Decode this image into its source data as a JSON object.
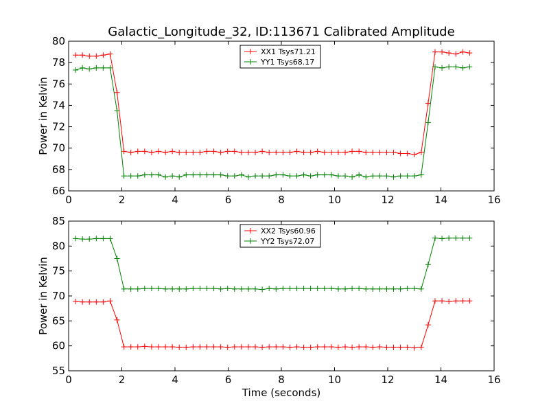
{
  "chart_data": [
    {
      "type": "line",
      "title": "Galactic_Longitude_32, ID:113671 Calibrated Amplitude",
      "xlabel": "",
      "ylabel": "Power in Kelvin",
      "xlim": [
        0,
        16
      ],
      "ylim": [
        66,
        80
      ],
      "xticks": [
        0,
        2,
        4,
        6,
        8,
        10,
        12,
        14,
        16
      ],
      "yticks": [
        66,
        68,
        70,
        72,
        74,
        76,
        78,
        80
      ],
      "legend_position": "upper center",
      "series": [
        {
          "name": "XX1 Tsys71.21",
          "color": "#ff0000",
          "x": [
            0.26,
            0.52,
            0.78,
            1.04,
            1.3,
            1.56,
            1.82,
            2.08,
            2.34,
            2.6,
            2.86,
            3.12,
            3.38,
            3.64,
            3.9,
            4.16,
            4.42,
            4.68,
            4.94,
            5.2,
            5.46,
            5.72,
            5.98,
            6.24,
            6.5,
            6.76,
            7.02,
            7.28,
            7.54,
            7.8,
            8.06,
            8.32,
            8.58,
            8.84,
            9.1,
            9.36,
            9.62,
            9.88,
            10.14,
            10.4,
            10.66,
            10.92,
            11.18,
            11.44,
            11.7,
            11.96,
            12.22,
            12.48,
            12.74,
            13.0,
            13.26,
            13.52,
            13.78,
            14.04,
            14.3,
            14.56,
            14.82,
            15.08
          ],
          "y": [
            78.7,
            78.7,
            78.6,
            78.6,
            78.7,
            78.8,
            75.2,
            69.7,
            69.6,
            69.7,
            69.7,
            69.6,
            69.7,
            69.6,
            69.7,
            69.6,
            69.6,
            69.6,
            69.6,
            69.7,
            69.7,
            69.6,
            69.7,
            69.7,
            69.6,
            69.6,
            69.6,
            69.7,
            69.6,
            69.6,
            69.6,
            69.6,
            69.7,
            69.6,
            69.6,
            69.7,
            69.6,
            69.6,
            69.6,
            69.6,
            69.7,
            69.7,
            69.6,
            69.6,
            69.6,
            69.6,
            69.6,
            69.5,
            69.5,
            69.4,
            69.6,
            74.2,
            79.0,
            79.0,
            78.9,
            78.8,
            79.0,
            78.9
          ]
        },
        {
          "name": "YY1 Tsys68.17",
          "color": "#008000",
          "x": [
            0.26,
            0.52,
            0.78,
            1.04,
            1.3,
            1.56,
            1.82,
            2.08,
            2.34,
            2.6,
            2.86,
            3.12,
            3.38,
            3.64,
            3.9,
            4.16,
            4.42,
            4.68,
            4.94,
            5.2,
            5.46,
            5.72,
            5.98,
            6.24,
            6.5,
            6.76,
            7.02,
            7.28,
            7.54,
            7.8,
            8.06,
            8.32,
            8.58,
            8.84,
            9.1,
            9.36,
            9.62,
            9.88,
            10.14,
            10.4,
            10.66,
            10.92,
            11.18,
            11.44,
            11.7,
            11.96,
            12.22,
            12.48,
            12.74,
            13.0,
            13.26,
            13.52,
            13.78,
            14.04,
            14.3,
            14.56,
            14.82,
            15.08
          ],
          "y": [
            77.3,
            77.5,
            77.4,
            77.5,
            77.5,
            77.5,
            73.5,
            67.4,
            67.4,
            67.4,
            67.5,
            67.5,
            67.5,
            67.3,
            67.4,
            67.3,
            67.5,
            67.5,
            67.5,
            67.5,
            67.5,
            67.5,
            67.4,
            67.4,
            67.5,
            67.3,
            67.4,
            67.4,
            67.4,
            67.5,
            67.5,
            67.4,
            67.4,
            67.5,
            67.4,
            67.5,
            67.5,
            67.5,
            67.4,
            67.4,
            67.3,
            67.5,
            67.3,
            67.4,
            67.4,
            67.4,
            67.3,
            67.4,
            67.4,
            67.4,
            67.5,
            72.4,
            77.6,
            77.5,
            77.6,
            77.6,
            77.5,
            77.6
          ]
        }
      ]
    },
    {
      "type": "line",
      "title": "",
      "xlabel": "Time (seconds)",
      "ylabel": "Power in Kelvin",
      "xlim": [
        0,
        16
      ],
      "ylim": [
        55,
        85
      ],
      "xticks": [
        0,
        2,
        4,
        6,
        8,
        10,
        12,
        14,
        16
      ],
      "yticks": [
        55,
        60,
        65,
        70,
        75,
        80,
        85
      ],
      "legend_position": "upper center",
      "series": [
        {
          "name": "XX2 Tsys60.96",
          "color": "#ff0000",
          "x": [
            0.26,
            0.52,
            0.78,
            1.04,
            1.3,
            1.56,
            1.82,
            2.08,
            2.34,
            2.6,
            2.86,
            3.12,
            3.38,
            3.64,
            3.9,
            4.16,
            4.42,
            4.68,
            4.94,
            5.2,
            5.46,
            5.72,
            5.98,
            6.24,
            6.5,
            6.76,
            7.02,
            7.28,
            7.54,
            7.8,
            8.06,
            8.32,
            8.58,
            8.84,
            9.1,
            9.36,
            9.62,
            9.88,
            10.14,
            10.4,
            10.66,
            10.92,
            11.18,
            11.44,
            11.7,
            11.96,
            12.22,
            12.48,
            12.74,
            13.0,
            13.26,
            13.52,
            13.78,
            14.04,
            14.3,
            14.56,
            14.82,
            15.08
          ],
          "y": [
            68.9,
            68.8,
            68.8,
            68.8,
            68.8,
            69.0,
            65.2,
            59.8,
            59.8,
            59.8,
            59.9,
            59.8,
            59.8,
            59.8,
            59.8,
            59.7,
            59.7,
            59.8,
            59.8,
            59.8,
            59.8,
            59.8,
            59.7,
            59.8,
            59.8,
            59.8,
            59.8,
            59.7,
            59.8,
            59.8,
            59.8,
            59.7,
            59.8,
            59.7,
            59.7,
            59.8,
            59.8,
            59.8,
            59.7,
            59.8,
            59.7,
            59.8,
            59.8,
            59.7,
            59.8,
            59.7,
            59.7,
            59.7,
            59.7,
            59.6,
            59.7,
            64.2,
            69.0,
            69.0,
            68.9,
            69.0,
            69.0,
            69.0
          ]
        },
        {
          "name": "YY2 Tsys72.07",
          "color": "#008000",
          "x": [
            0.26,
            0.52,
            0.78,
            1.04,
            1.3,
            1.56,
            1.82,
            2.08,
            2.34,
            2.6,
            2.86,
            3.12,
            3.38,
            3.64,
            3.9,
            4.16,
            4.42,
            4.68,
            4.94,
            5.2,
            5.46,
            5.72,
            5.98,
            6.24,
            6.5,
            6.76,
            7.02,
            7.28,
            7.54,
            7.8,
            8.06,
            8.32,
            8.58,
            8.84,
            9.1,
            9.36,
            9.62,
            9.88,
            10.14,
            10.4,
            10.66,
            10.92,
            11.18,
            11.44,
            11.7,
            11.96,
            12.22,
            12.48,
            12.74,
            13.0,
            13.26,
            13.52,
            13.78,
            14.04,
            14.3,
            14.56,
            14.82,
            15.08
          ],
          "y": [
            81.5,
            81.4,
            81.4,
            81.5,
            81.5,
            81.5,
            77.5,
            71.4,
            71.4,
            71.4,
            71.5,
            71.5,
            71.5,
            71.4,
            71.4,
            71.4,
            71.4,
            71.5,
            71.5,
            71.5,
            71.5,
            71.4,
            71.5,
            71.4,
            71.4,
            71.4,
            71.4,
            71.3,
            71.5,
            71.4,
            71.5,
            71.5,
            71.5,
            71.5,
            71.5,
            71.5,
            71.5,
            71.5,
            71.4,
            71.4,
            71.5,
            71.5,
            71.4,
            71.4,
            71.4,
            71.4,
            71.4,
            71.4,
            71.5,
            71.5,
            71.4,
            76.3,
            81.6,
            81.5,
            81.6,
            81.6,
            81.6,
            81.6
          ]
        }
      ]
    }
  ]
}
